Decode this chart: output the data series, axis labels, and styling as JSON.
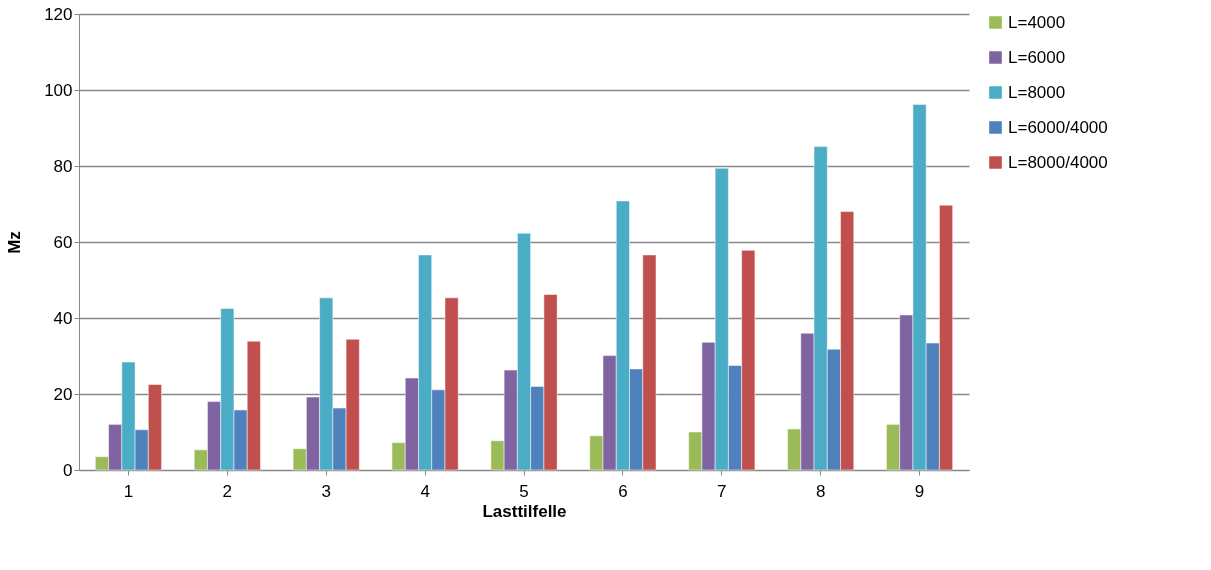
{
  "chart_data": {
    "type": "bar",
    "xlabel": "Lasttilfelle",
    "ylabel": "Mz",
    "categories": [
      "1",
      "2",
      "3",
      "4",
      "5",
      "6",
      "7",
      "8",
      "9"
    ],
    "series": [
      {
        "name": "L=4000",
        "color": "#9bbb59",
        "values": [
          3.5,
          5.3,
          5.6,
          7.2,
          7.7,
          9,
          10,
          10.8,
          12
        ]
      },
      {
        "name": "L=6000",
        "color": "#8064a2",
        "values": [
          12,
          18,
          19.2,
          24.2,
          26.3,
          30.1,
          33.6,
          36,
          40.8
        ]
      },
      {
        "name": "L=8000",
        "color": "#4bacc6",
        "values": [
          28.4,
          42.5,
          45.3,
          56.6,
          62.3,
          70.8,
          79.4,
          85.1,
          96.2
        ]
      },
      {
        "name": "L=6000/4000",
        "color": "#4f81bd",
        "values": [
          10.6,
          15.8,
          16.3,
          21.1,
          22,
          26.6,
          27.5,
          31.8,
          33.4
        ]
      },
      {
        "name": "L=8000/4000",
        "color": "#c0504d",
        "values": [
          22.5,
          33.9,
          34.4,
          45.3,
          46.2,
          56.6,
          57.8,
          68,
          69.7
        ]
      }
    ],
    "ylim": [
      0,
      120
    ],
    "yticks": [
      0,
      20,
      40,
      60,
      80,
      100,
      120
    ],
    "grid": "y",
    "legend": "right"
  }
}
